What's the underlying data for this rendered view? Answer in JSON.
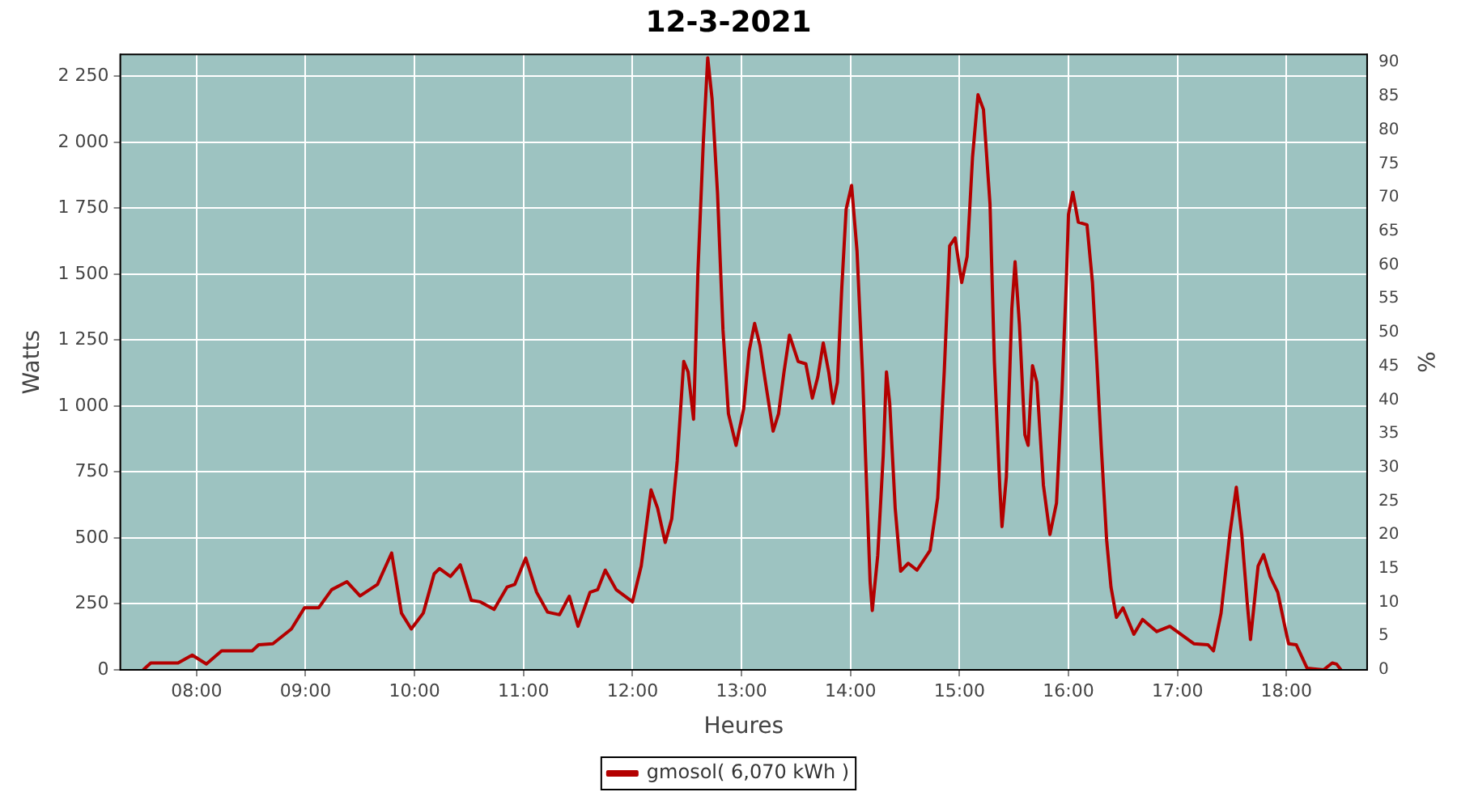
{
  "chart_data": {
    "type": "line",
    "title": "12-3-2021",
    "xlabel": "Heures",
    "ylabel": "Watts",
    "y2label": "%",
    "x": [
      7.51,
      7.58,
      7.83,
      7.96,
      8.09,
      8.23,
      8.51,
      8.57,
      8.7,
      8.87,
      8.99,
      9.12,
      9.24,
      9.38,
      9.5,
      9.66,
      9.79,
      9.88,
      9.97,
      10.08,
      10.18,
      10.23,
      10.33,
      10.42,
      10.52,
      10.6,
      10.73,
      10.85,
      10.92,
      11.02,
      11.12,
      11.22,
      11.33,
      11.42,
      11.5,
      11.61,
      11.68,
      11.75,
      11.85,
      12.0,
      12.08,
      12.17,
      12.23,
      12.3,
      12.36,
      12.41,
      12.47,
      12.51,
      12.56,
      12.6,
      12.65,
      12.69,
      12.73,
      12.78,
      12.83,
      12.88,
      12.95,
      13.02,
      13.07,
      13.12,
      13.17,
      13.22,
      13.29,
      13.34,
      13.39,
      13.44,
      13.52,
      13.59,
      13.65,
      13.7,
      13.75,
      13.8,
      13.84,
      13.88,
      13.92,
      13.96,
      14.01,
      14.06,
      14.11,
      14.15,
      14.18,
      14.2,
      14.25,
      14.3,
      14.33,
      14.36,
      14.41,
      14.46,
      14.53,
      14.61,
      14.73,
      14.8,
      14.86,
      14.91,
      14.96,
      15.02,
      15.07,
      15.12,
      15.17,
      15.22,
      15.28,
      15.32,
      15.37,
      15.39,
      15.43,
      15.48,
      15.51,
      15.55,
      15.6,
      15.63,
      15.65,
      15.67,
      15.71,
      15.77,
      15.83,
      15.89,
      15.94,
      15.98,
      16.0,
      16.04,
      16.09,
      16.17,
      16.22,
      16.26,
      16.3,
      16.35,
      16.39,
      16.44,
      16.5,
      16.6,
      16.68,
      16.81,
      16.93,
      17.15,
      17.28,
      17.33,
      17.4,
      17.48,
      17.54,
      17.59,
      17.64,
      17.67,
      17.74,
      17.79,
      17.85,
      17.92,
      17.99,
      18.02,
      18.09,
      18.19,
      18.34,
      18.42,
      18.46,
      18.5
    ],
    "series": [
      {
        "name": "gmosol( 6,070 kWh )",
        "color": "#b30000",
        "values": [
          0,
          26,
          26,
          56,
          22,
          72,
          72,
          95,
          99,
          155,
          235,
          235,
          304,
          334,
          280,
          324,
          443,
          215,
          155,
          215,
          364,
          384,
          354,
          398,
          264,
          258,
          229,
          314,
          324,
          424,
          294,
          219,
          209,
          279,
          165,
          294,
          304,
          378,
          304,
          258,
          394,
          682,
          613,
          483,
          573,
          792,
          1169,
          1129,
          950,
          1508,
          2005,
          2320,
          2164,
          1806,
          1289,
          971,
          851,
          990,
          1209,
          1313,
          1229,
          1090,
          905,
          971,
          1129,
          1269,
          1169,
          1160,
          1030,
          1110,
          1239,
          1129,
          1010,
          1090,
          1448,
          1746,
          1836,
          1587,
          1129,
          672,
          334,
          225,
          434,
          811,
          1129,
          1010,
          613,
          374,
          404,
          378,
          453,
          652,
          1129,
          1607,
          1637,
          1468,
          1567,
          1945,
          2180,
          2124,
          1766,
          1169,
          692,
          543,
          732,
          1368,
          1547,
          1309,
          891,
          851,
          1010,
          1153,
          1090,
          700,
          513,
          632,
          1050,
          1468,
          1726,
          1810,
          1697,
          1687,
          1468,
          1169,
          851,
          493,
          314,
          199,
          235,
          135,
          191,
          145,
          165,
          99,
          95,
          72,
          215,
          513,
          692,
          513,
          255,
          115,
          394,
          437,
          354,
          294,
          155,
          99,
          95,
          6,
          0,
          26,
          22,
          0
        ]
      }
    ],
    "xlim": [
      7.3,
      18.74
    ],
    "xticks": [
      {
        "value": 8,
        "label": "08:00"
      },
      {
        "value": 9,
        "label": "09:00"
      },
      {
        "value": 10,
        "label": "10:00"
      },
      {
        "value": 11,
        "label": "11:00"
      },
      {
        "value": 12,
        "label": "12:00"
      },
      {
        "value": 13,
        "label": "13:00"
      },
      {
        "value": 14,
        "label": "14:00"
      },
      {
        "value": 15,
        "label": "15:00"
      },
      {
        "value": 16,
        "label": "16:00"
      },
      {
        "value": 17,
        "label": "17:00"
      },
      {
        "value": 18,
        "label": "18:00"
      }
    ],
    "ylim": [
      0,
      2333
    ],
    "yticks": [
      0,
      250,
      500,
      750,
      {
        "value": 1000,
        "label": "1 000"
      },
      {
        "value": 1250,
        "label": "1 250"
      },
      {
        "value": 1500,
        "label": "1 500"
      },
      {
        "value": 1750,
        "label": "1 750"
      },
      {
        "value": 2000,
        "label": "2 000"
      },
      {
        "value": 2250,
        "label": "2 250"
      }
    ],
    "y2lim": [
      0,
      91.2
    ],
    "y2ticks": [
      0,
      5,
      10,
      15,
      20,
      25,
      30,
      35,
      40,
      45,
      50,
      55,
      60,
      65,
      70,
      75,
      80,
      85,
      90
    ],
    "grid": true,
    "legend": "bottom",
    "marker": "none",
    "line_style": "solid"
  }
}
